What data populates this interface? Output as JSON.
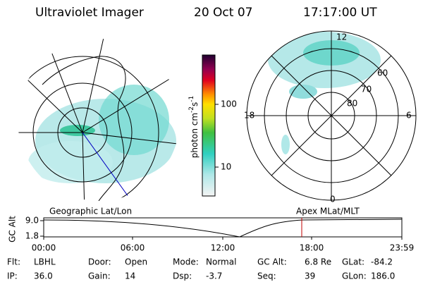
{
  "header": {
    "instrument": "Ultraviolet Imager",
    "date": "20 Oct 07",
    "time": "17:17:00 UT"
  },
  "colorbar": {
    "label": [
      "photon cm",
      "-2",
      "s",
      "-1"
    ],
    "ticks": [
      "100",
      "10"
    ]
  },
  "polar_grid": {
    "hours": [
      "12",
      "18",
      "6",
      "0"
    ],
    "latitudes": [
      "60",
      "70",
      "80"
    ]
  },
  "altitude_plot": {
    "ylabel": "GC Alt",
    "yticks": [
      "9.0",
      "1.8"
    ],
    "left_label": "Geographic Lat/Lon",
    "right_label": "Apex MLat/MLT",
    "xticks": [
      "00:00",
      "06:00",
      "12:00",
      "18:00",
      "23:59"
    ]
  },
  "status": [
    [
      {
        "label": "Flt:",
        "value": "LBHL"
      },
      {
        "label": "Door:",
        "value": "Open"
      },
      {
        "label": "Mode:",
        "value": "Normal"
      },
      {
        "label": "GC Alt:",
        "value": "6.8 Re"
      },
      {
        "label": "GLat:",
        "value": "-84.2"
      }
    ],
    [
      {
        "label": "IP:",
        "value": "36.0"
      },
      {
        "label": "Gain:",
        "value": "14"
      },
      {
        "label": "Dsp:",
        "value": "-3.7"
      },
      {
        "label": "Seq:",
        "value": "39"
      },
      {
        "label": "GLon:",
        "value": "186.0"
      }
    ]
  ]
}
